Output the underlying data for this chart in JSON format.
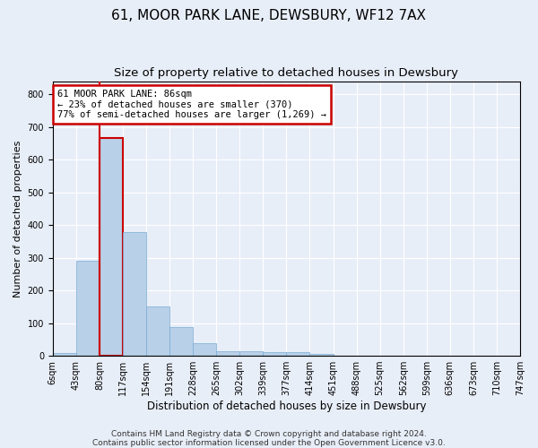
{
  "title": "61, MOOR PARK LANE, DEWSBURY, WF12 7AX",
  "subtitle": "Size of property relative to detached houses in Dewsbury",
  "xlabel": "Distribution of detached houses by size in Dewsbury",
  "ylabel": "Number of detached properties",
  "bar_values": [
    8,
    290,
    665,
    378,
    152,
    88,
    38,
    15,
    14,
    10,
    10,
    6,
    0,
    0,
    0,
    0,
    0,
    0,
    0,
    0
  ],
  "bin_labels": [
    "6sqm",
    "43sqm",
    "80sqm",
    "117sqm",
    "154sqm",
    "191sqm",
    "228sqm",
    "265sqm",
    "302sqm",
    "339sqm",
    "377sqm",
    "414sqm",
    "451sqm",
    "488sqm",
    "525sqm",
    "562sqm",
    "599sqm",
    "636sqm",
    "673sqm",
    "710sqm",
    "747sqm"
  ],
  "bar_color": "#b8d0e8",
  "bar_edge_color": "#7aadd4",
  "highlight_bar_index": 2,
  "highlight_edge_color": "#cc0000",
  "annotation_text": "61 MOOR PARK LANE: 86sqm\n← 23% of detached houses are smaller (370)\n77% of semi-detached houses are larger (1,269) →",
  "annotation_box_color": "#ffffff",
  "annotation_box_edge_color": "#cc0000",
  "ylim": [
    0,
    840
  ],
  "yticks": [
    0,
    100,
    200,
    300,
    400,
    500,
    600,
    700,
    800
  ],
  "background_color": "#e8eef8",
  "grid_color": "#ffffff",
  "footer_text": "Contains HM Land Registry data © Crown copyright and database right 2024.\nContains public sector information licensed under the Open Government Licence v3.0.",
  "title_fontsize": 11,
  "subtitle_fontsize": 9.5,
  "xlabel_fontsize": 8.5,
  "ylabel_fontsize": 8,
  "tick_fontsize": 7,
  "annotation_fontsize": 7.5,
  "footer_fontsize": 6.5
}
